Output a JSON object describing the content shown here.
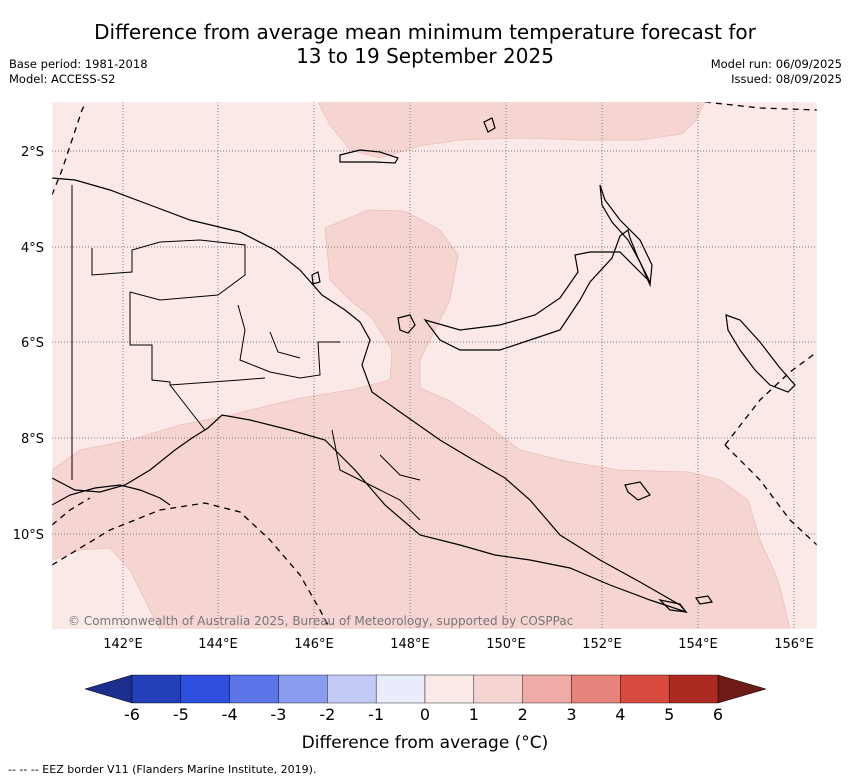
{
  "title_line1": "Difference from average mean minimum temperature forecast for",
  "title_line2": "13 to 19 September 2025",
  "base_period": "Base period: 1981-2018",
  "model": "Model: ACCESS-S2",
  "model_run": "Model run: 06/09/2025",
  "issued": "Issued: 08/09/2025",
  "copyright": "© Commonwealth of Australia 2025, Bureau of Meteorology, supported by COSPPac",
  "lat_labels": [
    "2°S",
    "4°S",
    "6°S",
    "8°S",
    "10°S"
  ],
  "lon_labels": [
    "142°E",
    "144°E",
    "146°E",
    "148°E",
    "150°E",
    "152°E",
    "154°E",
    "156°E"
  ],
  "colorbar": {
    "ticks": [
      "-6",
      "-5",
      "-4",
      "-3",
      "-2",
      "-1",
      "0",
      "1",
      "2",
      "3",
      "4",
      "5",
      "6"
    ],
    "colors": [
      "#1c2f8f",
      "#2440b8",
      "#2f4fde",
      "#5b74e8",
      "#8a9cf0",
      "#c3caf5",
      "#e8ecfb",
      "#fbe9e7",
      "#f5d4d1",
      "#efaca6",
      "#e6837a",
      "#d94a3f",
      "#ad2a22",
      "#6e1a17"
    ],
    "label": "Difference from average (°C)"
  },
  "legend": "-- -- -- EEZ border V11 (Flanders Marine Institute, 2019)."
}
